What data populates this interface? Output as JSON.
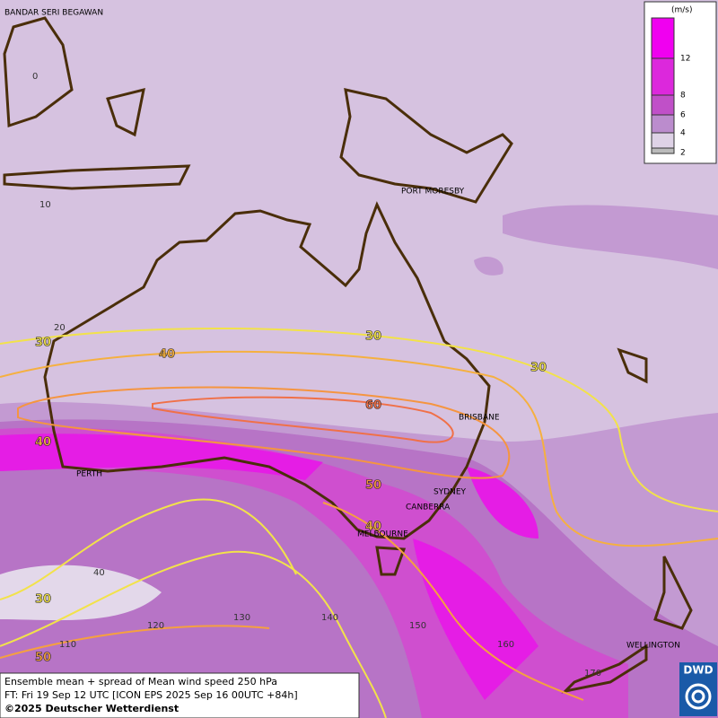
{
  "map": {
    "cities": [
      "BANDAR SERI BEGAWAN",
      "PORT MORESBY",
      "BRISBANE",
      "PERTH",
      "SYDNEY",
      "CANBERRA",
      "MELBOURNE",
      "WELLINGTON"
    ],
    "latitude_labels": [
      "0",
      "10",
      "20",
      "40"
    ],
    "longitude_labels": [
      "110",
      "120",
      "130",
      "140",
      "150",
      "160",
      "170"
    ],
    "contour_labels": [
      "30",
      "40",
      "30",
      "30",
      "60",
      "40",
      "50",
      "40",
      "30",
      "50"
    ],
    "legend": {
      "unit": "(m/s)",
      "ticks": [
        "12",
        "8",
        "6",
        "4",
        "2"
      ]
    },
    "caption": [
      "Ensemble mean + spread of Mean wind speed 250 hPa",
      "FT: Fri 19 Sep 12 UTC [ICON EPS 2025 Sep 16 00UTC +84h]",
      "©2025 Deutscher Wetterdienst"
    ],
    "logo": "DWD"
  }
}
